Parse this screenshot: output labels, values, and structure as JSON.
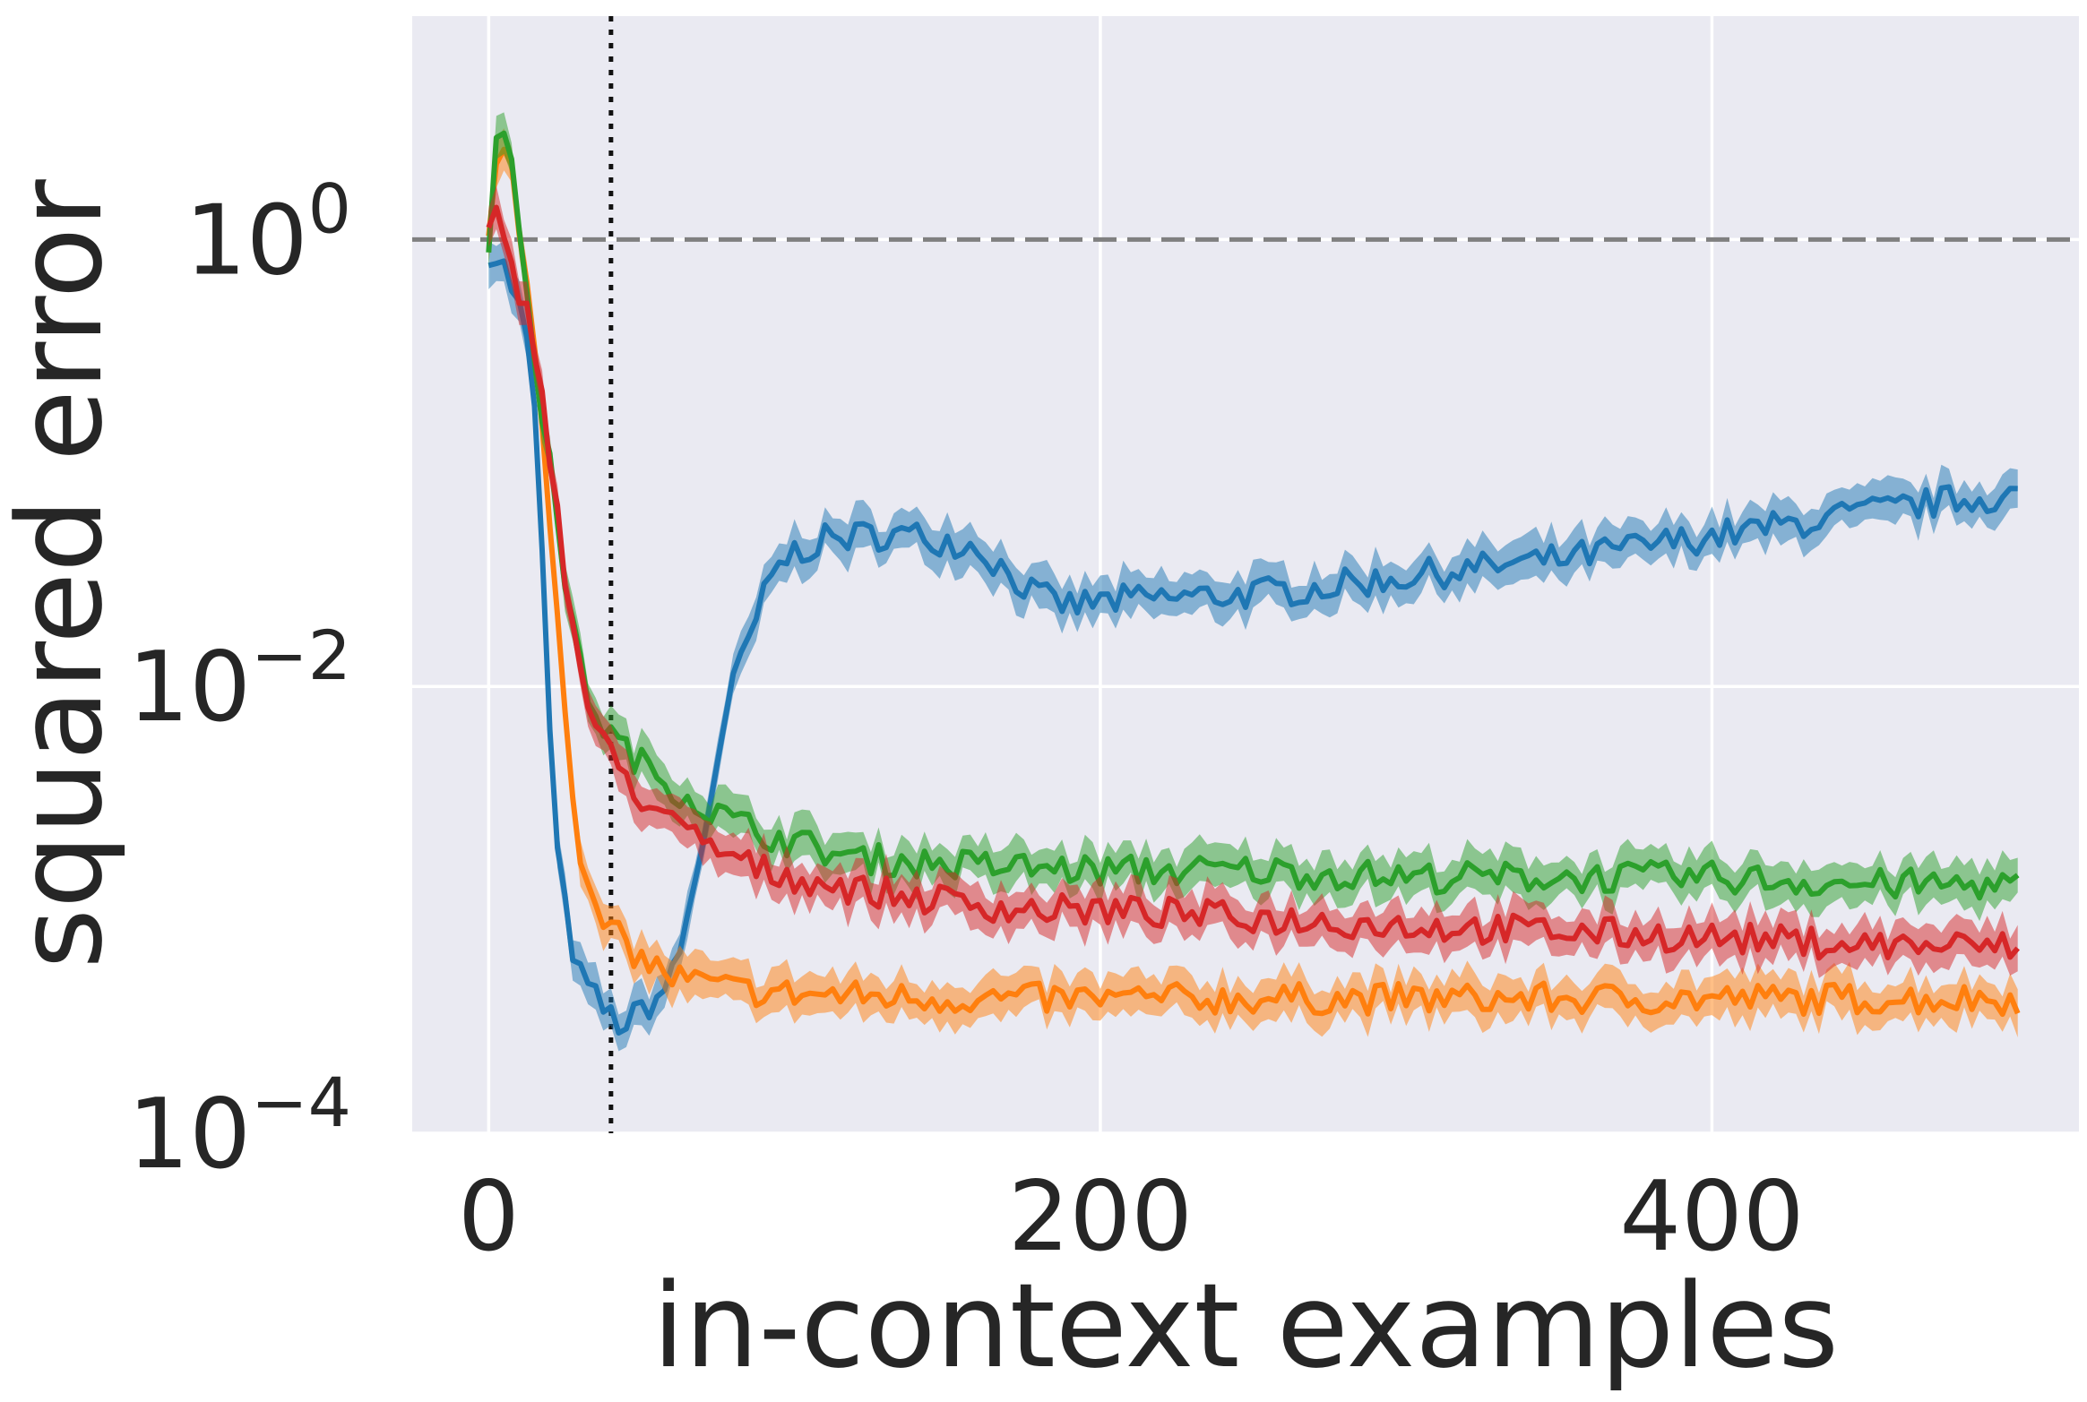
{
  "chart_data": {
    "type": "line",
    "title": "",
    "xlabel": "in-context examples",
    "ylabel": "squared error",
    "xlim": [
      -25,
      520
    ],
    "ylim": [
      0.0001,
      10
    ],
    "yscale": "log",
    "grid": true,
    "x_ticks": [
      {
        "value": 0,
        "label": "0"
      },
      {
        "value": 200,
        "label": "200"
      },
      {
        "value": 400,
        "label": "400"
      }
    ],
    "y_ticks": [
      {
        "value": 1,
        "base": "10",
        "exp": "0"
      },
      {
        "value": 0.01,
        "base": "10",
        "exp": "−2"
      },
      {
        "value": 0.0001,
        "base": "10",
        "exp": "−4"
      }
    ],
    "reference_lines": [
      {
        "orientation": "horizontal",
        "value": 1,
        "style": "dashed",
        "color": "#808080"
      },
      {
        "orientation": "vertical",
        "value": 40,
        "style": "dotted",
        "color": "#111111"
      }
    ],
    "series": [
      {
        "color": "#1f77b4",
        "points": [
          [
            0,
            0.9
          ],
          [
            4,
            0.8
          ],
          [
            8,
            0.6
          ],
          [
            12,
            0.4
          ],
          [
            16,
            0.12
          ],
          [
            18,
            0.03
          ],
          [
            20,
            0.006
          ],
          [
            22,
            0.002
          ],
          [
            26,
            0.0008
          ],
          [
            30,
            0.0005
          ],
          [
            35,
            0.0004
          ],
          [
            40,
            0.00033
          ],
          [
            45,
            0.0003
          ],
          [
            50,
            0.00036
          ],
          [
            55,
            0.0004
          ],
          [
            60,
            0.0005
          ],
          [
            65,
            0.0009
          ],
          [
            70,
            0.002
          ],
          [
            75,
            0.005
          ],
          [
            80,
            0.01
          ],
          [
            85,
            0.016
          ],
          [
            90,
            0.025
          ],
          [
            95,
            0.035
          ],
          [
            100,
            0.04
          ],
          [
            110,
            0.045
          ],
          [
            120,
            0.047
          ],
          [
            130,
            0.048
          ],
          [
            140,
            0.047
          ],
          [
            150,
            0.045
          ],
          [
            160,
            0.042
          ],
          [
            170,
            0.032
          ],
          [
            180,
            0.025
          ],
          [
            190,
            0.023
          ],
          [
            200,
            0.024
          ],
          [
            225,
            0.025
          ],
          [
            250,
            0.026
          ],
          [
            275,
            0.028
          ],
          [
            300,
            0.031
          ],
          [
            325,
            0.034
          ],
          [
            350,
            0.037
          ],
          [
            375,
            0.042
          ],
          [
            400,
            0.047
          ],
          [
            425,
            0.053
          ],
          [
            450,
            0.06
          ],
          [
            475,
            0.067
          ],
          [
            500,
            0.072
          ]
        ]
      },
      {
        "color": "#ff7f0e",
        "points": [
          [
            0,
            1.0
          ],
          [
            3,
            2.3
          ],
          [
            6,
            2.4
          ],
          [
            9,
            1.6
          ],
          [
            12,
            0.7
          ],
          [
            16,
            0.25
          ],
          [
            20,
            0.06
          ],
          [
            24,
            0.012
          ],
          [
            28,
            0.003
          ],
          [
            32,
            0.0012
          ],
          [
            36,
            0.0009
          ],
          [
            40,
            0.0008
          ],
          [
            45,
            0.0007
          ],
          [
            50,
            0.0006
          ],
          [
            55,
            0.00055
          ],
          [
            60,
            0.0005
          ],
          [
            70,
            0.00047
          ],
          [
            80,
            0.00044
          ],
          [
            100,
            0.00042
          ],
          [
            125,
            0.00041
          ],
          [
            150,
            0.0004
          ],
          [
            175,
            0.0004
          ],
          [
            200,
            0.0004
          ],
          [
            250,
            0.0004
          ],
          [
            300,
            0.0004
          ],
          [
            350,
            0.0004
          ],
          [
            400,
            0.0004
          ],
          [
            450,
            0.0004
          ],
          [
            500,
            0.0004
          ]
        ]
      },
      {
        "color": "#2ca02c",
        "points": [
          [
            0,
            1.0
          ],
          [
            2,
            2.5
          ],
          [
            4,
            3.2
          ],
          [
            7,
            2.2
          ],
          [
            10,
            1.2
          ],
          [
            14,
            0.4
          ],
          [
            18,
            0.15
          ],
          [
            22,
            0.06
          ],
          [
            26,
            0.025
          ],
          [
            30,
            0.012
          ],
          [
            35,
            0.0075
          ],
          [
            40,
            0.006
          ],
          [
            50,
            0.0045
          ],
          [
            60,
            0.0036
          ],
          [
            70,
            0.0029
          ],
          [
            80,
            0.0025
          ],
          [
            90,
            0.0022
          ],
          [
            100,
            0.002
          ],
          [
            120,
            0.0017
          ],
          [
            150,
            0.0016
          ],
          [
            200,
            0.0015
          ],
          [
            250,
            0.0015
          ],
          [
            300,
            0.0014
          ],
          [
            350,
            0.0014
          ],
          [
            400,
            0.0014
          ],
          [
            450,
            0.0013
          ],
          [
            500,
            0.0013
          ]
        ]
      },
      {
        "color": "#d62728",
        "points": [
          [
            0,
            1.1
          ],
          [
            2,
            1.3
          ],
          [
            5,
            0.9
          ],
          [
            8,
            0.7
          ],
          [
            11,
            0.55
          ],
          [
            15,
            0.35
          ],
          [
            19,
            0.15
          ],
          [
            23,
            0.05
          ],
          [
            27,
            0.02
          ],
          [
            31,
            0.01
          ],
          [
            35,
            0.0065
          ],
          [
            40,
            0.0048
          ],
          [
            50,
            0.0032
          ],
          [
            60,
            0.0024
          ],
          [
            70,
            0.002
          ],
          [
            80,
            0.0017
          ],
          [
            90,
            0.0015
          ],
          [
            100,
            0.0014
          ],
          [
            125,
            0.0012
          ],
          [
            150,
            0.0011
          ],
          [
            175,
            0.001
          ],
          [
            200,
            0.001
          ],
          [
            250,
            0.00092
          ],
          [
            300,
            0.00085
          ],
          [
            350,
            0.0008
          ],
          [
            400,
            0.00075
          ],
          [
            450,
            0.0007
          ],
          [
            500,
            0.00068
          ]
        ]
      }
    ]
  }
}
